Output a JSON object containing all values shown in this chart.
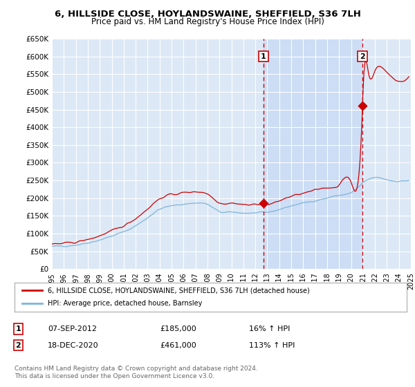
{
  "title": "6, HILLSIDE CLOSE, HOYLANDSWAINE, SHEFFIELD, S36 7LH",
  "subtitle": "Price paid vs. HM Land Registry's House Price Index (HPI)",
  "ylim": [
    0,
    650000
  ],
  "yticks": [
    0,
    50000,
    100000,
    150000,
    200000,
    250000,
    300000,
    350000,
    400000,
    450000,
    500000,
    550000,
    600000,
    650000
  ],
  "background_color": "#ffffff",
  "plot_bg_color": "#dce8f5",
  "grid_color": "#ffffff",
  "sale1_date_num": 2012.69,
  "sale1_price": 185000,
  "sale1_label": "1",
  "sale2_date_num": 2020.96,
  "sale2_price": 461000,
  "sale2_label": "2",
  "vline_color": "#cc0000",
  "shade_color": "#ccddf5",
  "hpi_color": "#7fb3d9",
  "price_color": "#cc0000",
  "legend_line1": "6, HILLSIDE CLOSE, HOYLANDSWAINE, SHEFFIELD, S36 7LH (detached house)",
  "legend_line2": "HPI: Average price, detached house, Barnsley",
  "table_row1": [
    "1",
    "07-SEP-2012",
    "£185,000",
    "16% ↑ HPI"
  ],
  "table_row2": [
    "2",
    "18-DEC-2020",
    "£461,000",
    "113% ↑ HPI"
  ],
  "footnote": "Contains HM Land Registry data © Crown copyright and database right 2024.\nThis data is licensed under the Open Government Licence v3.0.",
  "xmin": 1995,
  "xmax": 2025,
  "xticks": [
    1995,
    1996,
    1997,
    1998,
    1999,
    2000,
    2001,
    2002,
    2003,
    2004,
    2005,
    2006,
    2007,
    2008,
    2009,
    2010,
    2011,
    2012,
    2013,
    2014,
    2015,
    2016,
    2017,
    2018,
    2019,
    2020,
    2021,
    2022,
    2023,
    2024,
    2025
  ]
}
